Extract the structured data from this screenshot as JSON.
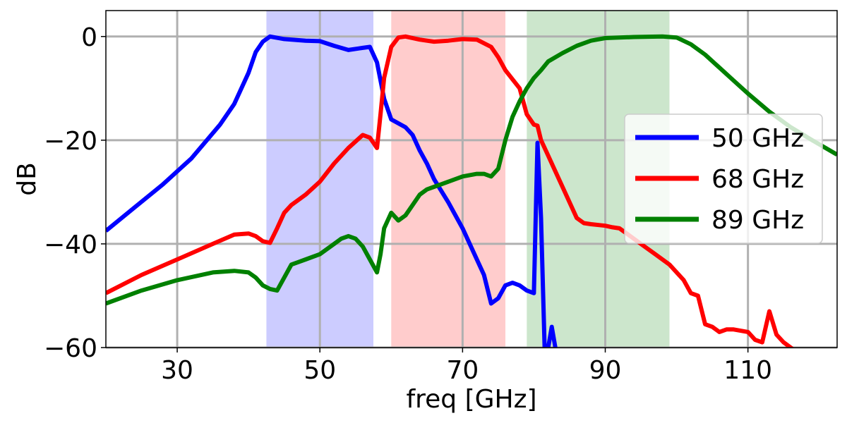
{
  "chart_data": {
    "type": "line",
    "title": "",
    "xlabel": "freq [GHz]",
    "ylabel": "dB",
    "xlim": [
      20,
      122.5
    ],
    "ylim": [
      -60,
      5
    ],
    "xticks": [
      30,
      50,
      70,
      90,
      110
    ],
    "yticks": [
      0,
      -20,
      -40,
      -60
    ],
    "xtick_labels": [
      "30",
      "50",
      "70",
      "90",
      "110"
    ],
    "ytick_labels": [
      "0",
      "−20",
      "−40",
      "−60"
    ],
    "grid": true,
    "legend_position": "center-right",
    "bands": [
      {
        "x0": 42.5,
        "x1": 57.5,
        "color": "#0000ff",
        "opacity": 0.2
      },
      {
        "x0": 60,
        "x1": 76,
        "color": "#ff0000",
        "opacity": 0.2
      },
      {
        "x0": 79,
        "x1": 99,
        "color": "#008000",
        "opacity": 0.2
      }
    ],
    "series": [
      {
        "name": "50 GHz",
        "color": "#0000ff",
        "points": [
          [
            20,
            -37.5
          ],
          [
            24,
            -33
          ],
          [
            28,
            -28.5
          ],
          [
            32,
            -23.5
          ],
          [
            36,
            -17
          ],
          [
            38,
            -13
          ],
          [
            40,
            -7
          ],
          [
            41,
            -3
          ],
          [
            42,
            -1
          ],
          [
            43,
            0
          ],
          [
            45,
            -0.5
          ],
          [
            48,
            -0.8
          ],
          [
            50,
            -0.9
          ],
          [
            52,
            -1.8
          ],
          [
            54,
            -2.6
          ],
          [
            56,
            -2.2
          ],
          [
            57,
            -2
          ],
          [
            58,
            -5
          ],
          [
            59,
            -12
          ],
          [
            60,
            -16
          ],
          [
            62,
            -17.5
          ],
          [
            63,
            -19
          ],
          [
            64,
            -22
          ],
          [
            65,
            -24.5
          ],
          [
            66,
            -27.5
          ],
          [
            68,
            -32
          ],
          [
            70,
            -37
          ],
          [
            72,
            -43
          ],
          [
            73,
            -46
          ],
          [
            74,
            -51.5
          ],
          [
            75,
            -50.5
          ],
          [
            76,
            -48
          ],
          [
            77,
            -47.5
          ],
          [
            78,
            -48
          ],
          [
            79,
            -49
          ],
          [
            80,
            -49.5
          ],
          [
            80.5,
            -20.5
          ],
          [
            81,
            -35
          ],
          [
            81.5,
            -60
          ],
          [
            82,
            -60
          ],
          [
            82.5,
            -56
          ],
          [
            83,
            -60
          ]
        ]
      },
      {
        "name": "68 GHz",
        "color": "#ff0000",
        "points": [
          [
            20,
            -49.5
          ],
          [
            25,
            -46
          ],
          [
            30,
            -43
          ],
          [
            35,
            -40
          ],
          [
            38,
            -38.2
          ],
          [
            40,
            -38
          ],
          [
            41,
            -38.5
          ],
          [
            42,
            -39.5
          ],
          [
            43,
            -39.8
          ],
          [
            44,
            -37
          ],
          [
            45,
            -34
          ],
          [
            46,
            -32.5
          ],
          [
            48,
            -30.5
          ],
          [
            50,
            -28
          ],
          [
            52,
            -24.5
          ],
          [
            54,
            -21.5
          ],
          [
            56,
            -19
          ],
          [
            57,
            -19.5
          ],
          [
            58,
            -21.5
          ],
          [
            58.5,
            -15
          ],
          [
            59,
            -8
          ],
          [
            60,
            -2
          ],
          [
            61,
            -0.2
          ],
          [
            62,
            0
          ],
          [
            64,
            -0.6
          ],
          [
            66,
            -1
          ],
          [
            68,
            -0.8
          ],
          [
            70,
            -0.5
          ],
          [
            72,
            -0.6
          ],
          [
            74,
            -2
          ],
          [
            75,
            -4
          ],
          [
            76,
            -6.5
          ],
          [
            78,
            -10
          ],
          [
            79,
            -15
          ],
          [
            80,
            -17
          ],
          [
            80.5,
            -17.2
          ],
          [
            81,
            -20
          ],
          [
            82,
            -23
          ],
          [
            83,
            -26
          ],
          [
            84,
            -29
          ],
          [
            85,
            -32
          ],
          [
            86,
            -35
          ],
          [
            87,
            -36
          ],
          [
            88,
            -36.2
          ],
          [
            90,
            -36.5
          ],
          [
            91,
            -36.8
          ],
          [
            92,
            -37
          ],
          [
            93,
            -38
          ],
          [
            95,
            -40
          ],
          [
            97,
            -42
          ],
          [
            99,
            -44
          ],
          [
            101,
            -47
          ],
          [
            102,
            -49.5
          ],
          [
            103,
            -50
          ],
          [
            104,
            -55.5
          ],
          [
            105,
            -56
          ],
          [
            106,
            -57
          ],
          [
            107,
            -56.5
          ],
          [
            108,
            -56.5
          ],
          [
            110,
            -57
          ],
          [
            111,
            -58.5
          ],
          [
            112,
            -59
          ],
          [
            113,
            -53
          ],
          [
            114,
            -57.5
          ],
          [
            115,
            -59
          ],
          [
            116,
            -60
          ],
          [
            117,
            -61
          ]
        ]
      },
      {
        "name": "89 GHz",
        "color": "#008000",
        "points": [
          [
            20,
            -51.5
          ],
          [
            25,
            -49
          ],
          [
            30,
            -47
          ],
          [
            35,
            -45.5
          ],
          [
            38,
            -45.2
          ],
          [
            40,
            -45.5
          ],
          [
            41,
            -46.5
          ],
          [
            42,
            -48
          ],
          [
            43,
            -48.7
          ],
          [
            44,
            -49
          ],
          [
            45,
            -46.5
          ],
          [
            46,
            -44
          ],
          [
            47,
            -43.5
          ],
          [
            48,
            -43
          ],
          [
            50,
            -42
          ],
          [
            52,
            -40
          ],
          [
            53,
            -39
          ],
          [
            54,
            -38.5
          ],
          [
            55,
            -39
          ],
          [
            56,
            -40.5
          ],
          [
            57,
            -43
          ],
          [
            58,
            -45.5
          ],
          [
            58.5,
            -42
          ],
          [
            59,
            -37
          ],
          [
            60,
            -34
          ],
          [
            61,
            -35.5
          ],
          [
            62,
            -34.5
          ],
          [
            63,
            -32.5
          ],
          [
            64,
            -30.5
          ],
          [
            65,
            -29.5
          ],
          [
            66,
            -29
          ],
          [
            67,
            -28.5
          ],
          [
            68,
            -28
          ],
          [
            70,
            -27
          ],
          [
            72,
            -26.5
          ],
          [
            73,
            -26.5
          ],
          [
            74,
            -27
          ],
          [
            75,
            -25.5
          ],
          [
            76,
            -20
          ],
          [
            77,
            -15.5
          ],
          [
            78,
            -12.5
          ],
          [
            79,
            -10
          ],
          [
            80,
            -8
          ],
          [
            81,
            -6.5
          ],
          [
            82,
            -4.8
          ],
          [
            84,
            -3.2
          ],
          [
            86,
            -1.8
          ],
          [
            88,
            -0.8
          ],
          [
            90,
            -0.3
          ],
          [
            94,
            -0.1
          ],
          [
            98,
            0
          ],
          [
            100,
            -0.2
          ],
          [
            102,
            -1.5
          ],
          [
            104,
            -3.5
          ],
          [
            106,
            -6
          ],
          [
            108,
            -8.5
          ],
          [
            110,
            -11
          ],
          [
            113,
            -14.5
          ],
          [
            116,
            -17.5
          ],
          [
            119,
            -20
          ],
          [
            122.5,
            -22.8
          ]
        ]
      }
    ]
  }
}
